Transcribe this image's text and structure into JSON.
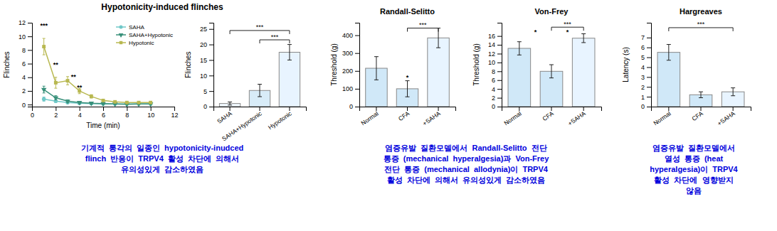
{
  "chart_data": [
    {
      "type": "line",
      "title": "Hypotonicity-induced flinches",
      "xlabel": "Time (min)",
      "ylabel": "Flinches",
      "x": [
        1,
        2,
        3,
        4,
        5,
        6,
        7,
        8,
        9,
        10
      ],
      "xlim": [
        0,
        12
      ],
      "xticks": [
        0,
        2,
        4,
        6,
        8,
        10,
        12
      ],
      "ylim": [
        -0.3,
        12
      ],
      "yticks": [
        0,
        2,
        4,
        6,
        8,
        10,
        12
      ],
      "legend": "upper right",
      "series": [
        {
          "name": "SAHA",
          "color": "#70c8c8",
          "marker": "circle",
          "values": [
            0.8,
            0.5,
            0.3,
            0.2,
            0.15,
            0.1,
            0.1,
            0.1,
            0.1,
            0.1
          ],
          "errors": [
            0.3,
            0.2,
            0.15,
            0.1,
            0.1,
            0.05,
            0.05,
            0.05,
            0.05,
            0.05
          ]
        },
        {
          "name": "SAHA+Hypotonic",
          "color": "#38907a",
          "marker": "triangle-down",
          "values": [
            2.2,
            1.0,
            0.5,
            0.3,
            0.2,
            0.15,
            0.1,
            0.05,
            0.1,
            0.1
          ],
          "errors": [
            0.5,
            0.3,
            0.2,
            0.15,
            0.1,
            0.1,
            0.05,
            0.05,
            0.05,
            0.05
          ]
        },
        {
          "name": "Hypotonic",
          "color": "#b8b850",
          "marker": "square",
          "values": [
            8.5,
            3.2,
            3.5,
            2.0,
            1.2,
            0.6,
            0.4,
            0.3,
            0.3,
            0.3
          ],
          "errors": [
            1.2,
            0.8,
            0.6,
            0.4,
            0.25,
            0.15,
            0.1,
            0.1,
            0.1,
            0.1
          ]
        }
      ],
      "annotations": [
        {
          "text": "***",
          "x": 1.0,
          "y": 11.3
        },
        {
          "text": "**",
          "x": 2.0,
          "y": 5.5
        },
        {
          "text": "**",
          "x": 3.5,
          "y": 3.8
        },
        {
          "text": "**",
          "x": 4.0,
          "y": 2.2
        },
        {
          "lines": [
            "기계적  통각의  일종인  hypotonicity-inudced",
            "flinch  반응이  TRPV4  활성  차단에  의해서",
            "유의성있게  감소하였음"
          ],
          "color": "#0000dd"
        }
      ]
    },
    {
      "type": "bar",
      "ylabel": "Flinches",
      "categories": [
        "SAHA",
        "SAHA+Hypotonic",
        "Hypotonic"
      ],
      "values": [
        1.0,
        5.2,
        17.5
      ],
      "errors": [
        0.5,
        2.0,
        2.5
      ],
      "colors": [
        "#f0f8ff",
        "#d8ecf8",
        "#e8f4ff"
      ],
      "ylim": [
        0,
        27
      ],
      "yticks": [
        0,
        5,
        10,
        15,
        20,
        25
      ],
      "annotations": [
        {
          "text": "***",
          "from": "SAHA+Hypotonic",
          "to": "Hypotonic",
          "y": 21.5
        },
        {
          "text": "***",
          "from": "SAHA",
          "to": "Hypotonic",
          "y": 24.5
        }
      ]
    },
    {
      "type": "bar",
      "title": "Randall-Selitto",
      "ylabel": "Threshold (g)",
      "categories": [
        "Normal",
        "CFA",
        "+SAHA"
      ],
      "values": [
        215,
        100,
        385
      ],
      "errors": [
        65,
        45,
        55
      ],
      "colors": [
        "#d0e8f8",
        "#d0e8f8",
        "#e8f4ff"
      ],
      "ylim": [
        0,
        470
      ],
      "yticks": [
        0,
        100,
        200,
        300,
        400
      ],
      "annotations": [
        {
          "text": "*",
          "x": 1.0,
          "y": 150
        },
        {
          "text": "***",
          "from": "CFA",
          "to": "+SAHA",
          "y": 440
        },
        {
          "lines": [
            "염증유발  질환모델에서  Randall-Selitto  전단",
            "통증  (mechanical  hyperalgesia)과  Von-Frey",
            "전단  통증  (mechanical  allodynia)이  TRPV4",
            "활성  차단에  의해서  유의성있게  감소하였음"
          ],
          "color": "#0000dd"
        }
      ]
    },
    {
      "type": "bar",
      "title": "Von-Frey",
      "ylabel": "Threshold (g)",
      "categories": [
        "Normal",
        "CFA",
        "+SAHA"
      ],
      "values": [
        13.2,
        8.0,
        15.5
      ],
      "errors": [
        1.5,
        1.5,
        1.0
      ],
      "colors": [
        "#d0e8f8",
        "#d0e8f8",
        "#e8f4ff"
      ],
      "ylim": [
        0,
        19
      ],
      "yticks": [
        0,
        2,
        4,
        6,
        8,
        10,
        12,
        14,
        16
      ],
      "annotations": [
        {
          "text": "*",
          "x": 0.5,
          "y": 16.5
        },
        {
          "text": "*",
          "x": 1.5,
          "y": 16.5
        },
        {
          "text": "***",
          "from": "CFA",
          "to": "+SAHA",
          "y": 18.0
        }
      ]
    },
    {
      "type": "bar",
      "title": "Hargreaves",
      "ylabel": "Latency (s)",
      "categories": [
        "Normal",
        "CFA",
        "+SAHA"
      ],
      "values": [
        5.5,
        1.2,
        1.5
      ],
      "errors": [
        0.8,
        0.3,
        0.4
      ],
      "colors": [
        "#d0e8f8",
        "#d0e8f8",
        "#e8f4ff"
      ],
      "ylim": [
        0,
        8.5
      ],
      "yticks": [
        0,
        1,
        2,
        3,
        4,
        5,
        6,
        7
      ],
      "annotations": [
        {
          "text": "***",
          "from": "Normal",
          "to": "+SAHA",
          "y": 8.0
        },
        {
          "lines": [
            "염증유발  질환모델에서",
            "열성  통증  (heat",
            "hyperalgesia)이  TRPV4",
            "활성  차단에  영향받지",
            "않음"
          ],
          "color": "#0000dd"
        }
      ]
    }
  ]
}
